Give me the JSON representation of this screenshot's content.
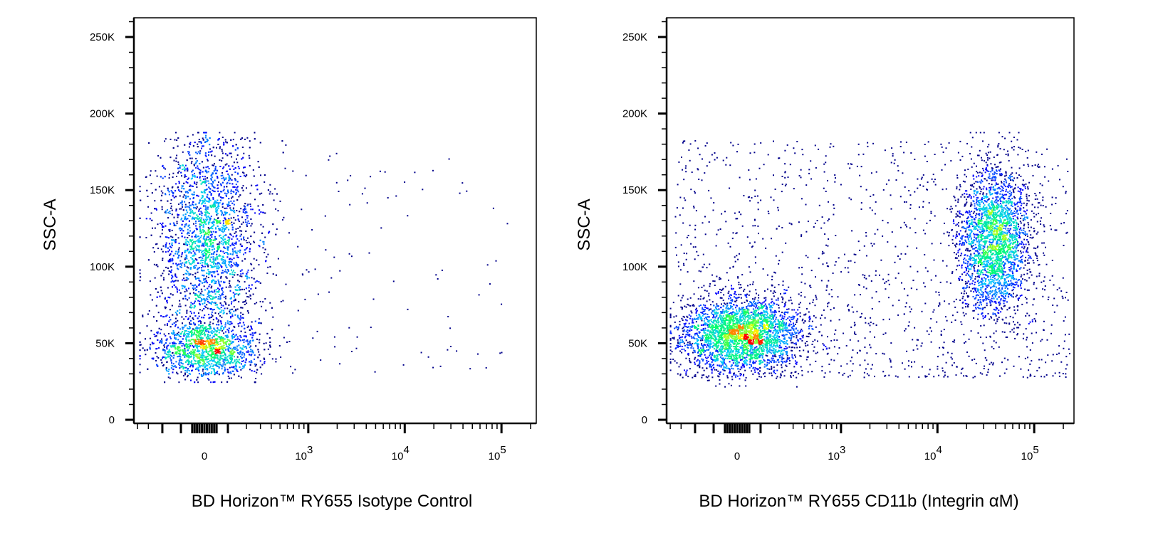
{
  "chart_data": [
    {
      "type": "scatter",
      "style": "pseudocolor density dot plot",
      "xlabel": "BD Horizon™ RY655 Isotype Control",
      "ylabel": "SSC-A",
      "x_scale": "biexponential",
      "x_ticks": [
        "0",
        "10^3",
        "10^4",
        "10^5"
      ],
      "y_ticks": [
        "0",
        "50K",
        "100K",
        "150K",
        "200K",
        "250K"
      ],
      "ylim": [
        0,
        262144
      ],
      "xlim": [
        -440,
        230000
      ],
      "populations": [
        {
          "x_center": 0,
          "x_range": [
            -350,
            500
          ],
          "y_center": 47000,
          "y_range": [
            25000,
            188000
          ],
          "relative_density": "high",
          "dense_core_y": 47000
        },
        {
          "x_center": 3000,
          "x_range": [
            500,
            90000
          ],
          "y_range": [
            30000,
            185000
          ],
          "relative_density": "sparse"
        }
      ],
      "density_colors": [
        "#00008b",
        "#0000ff",
        "#00c8ff",
        "#00ff66",
        "#ffff00",
        "#ff0000"
      ]
    },
    {
      "type": "scatter",
      "style": "pseudocolor density dot plot",
      "xlabel": "BD Horizon™ RY655 CD11b (Integrin αM)",
      "ylabel": "SSC-A",
      "x_scale": "biexponential",
      "x_ticks": [
        "0",
        "10^3",
        "10^4",
        "10^5"
      ],
      "y_ticks": [
        "0",
        "50K",
        "100K",
        "150K",
        "200K",
        "250K"
      ],
      "ylim": [
        0,
        262144
      ],
      "xlim": [
        -440,
        260000
      ],
      "populations": [
        {
          "name_hint": "CD11b negative",
          "x_center": 0,
          "x_range": [
            -400,
            1500
          ],
          "y_center": 50000,
          "y_range": [
            22000,
            90000
          ],
          "relative_density": "high"
        },
        {
          "name_hint": "CD11b positive",
          "x_center": 30000,
          "x_range": [
            8000,
            150000
          ],
          "y_center": 120000,
          "y_range": [
            40000,
            188000
          ],
          "relative_density": "high"
        },
        {
          "x_range": [
            -400,
            200000
          ],
          "y_range": [
            25000,
            185000
          ],
          "relative_density": "sparse"
        }
      ],
      "density_colors": [
        "#00008b",
        "#0000ff",
        "#00c8ff",
        "#00ff66",
        "#ffff00",
        "#ff0000"
      ]
    }
  ]
}
